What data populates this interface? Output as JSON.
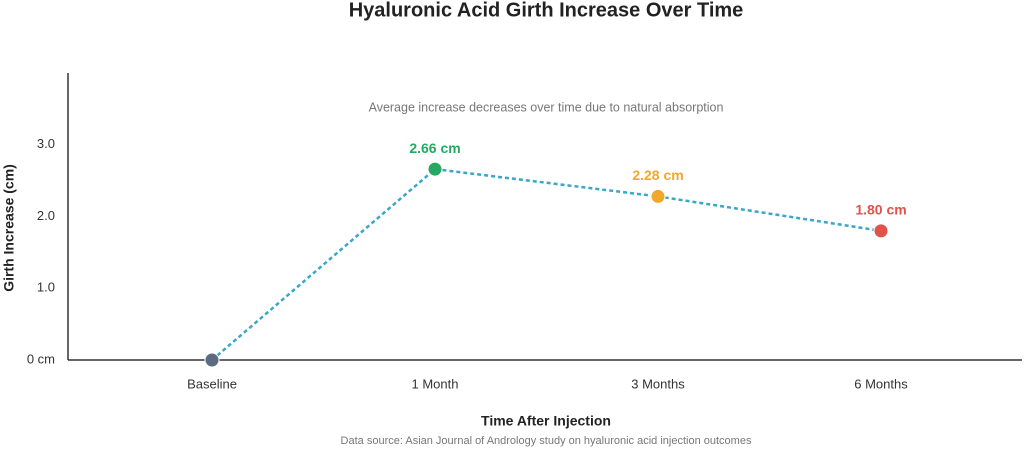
{
  "chart_data": {
    "type": "line",
    "title": "Hyaluronic Acid Girth Increase Over Time",
    "annotation": "Average increase decreases over time due to natural absorption",
    "x_label": "Time After Injection",
    "y_label": "Girth Increase (cm)",
    "source": "Data source: Asian Journal of Andrology study on hyaluronic acid injection outcomes",
    "categories": [
      "Baseline",
      "1 Month",
      "3 Months",
      "6 Months"
    ],
    "series": [
      {
        "color": "#3aa6c8",
        "values": [
          0,
          2.66,
          2.28,
          1.8
        ],
        "value_labels": [
          null,
          "2.66 cm",
          "2.28 cm",
          "1.80 cm"
        ],
        "point_colors": [
          "#5b6b84",
          "#27a862",
          "#f0a82a",
          "#e0524a"
        ]
      }
    ],
    "ylim": [
      0,
      4
    ],
    "yticks": [
      {
        "value": 0,
        "label": "0 cm"
      },
      {
        "value": 1,
        "label": "1.0"
      },
      {
        "value": 2,
        "label": "2.0"
      },
      {
        "value": 3,
        "label": "3.0"
      }
    ],
    "grid": false
  }
}
